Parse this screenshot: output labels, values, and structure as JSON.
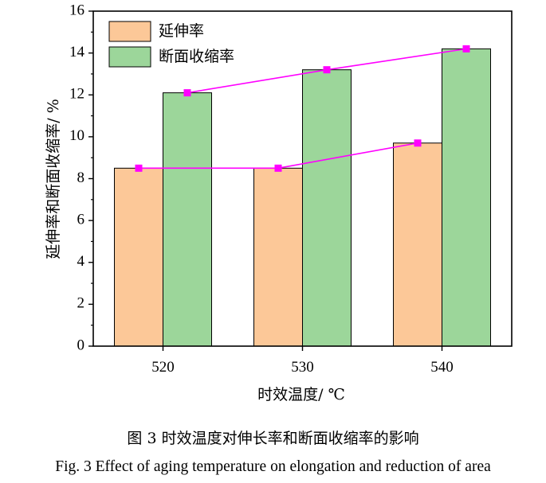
{
  "chart_data": {
    "type": "bar",
    "categories": [
      "520",
      "530",
      "540"
    ],
    "series": [
      {
        "name": "延伸率",
        "values": [
          8.5,
          8.5,
          9.7
        ],
        "color": "#fcc898"
      },
      {
        "name": "断面收缩率",
        "values": [
          12.1,
          13.2,
          14.2
        ],
        "color": "#9cd69a"
      }
    ],
    "overlay_line_color": "#ff00ff",
    "xlabel": "时效温度/ ℃",
    "ylabel": "延伸率和断面收缩率/ %",
    "ylim": [
      0,
      16
    ],
    "yticks": [
      "0",
      "2",
      "4",
      "6",
      "8",
      "10",
      "12",
      "14",
      "16"
    ],
    "legend_position": "top-left",
    "grid": false
  },
  "caption": {
    "cn": "图 3  时效温度对伸长率和断面收缩率的影响",
    "en": "Fig. 3 Effect of aging temperature on elongation and reduction of area"
  }
}
